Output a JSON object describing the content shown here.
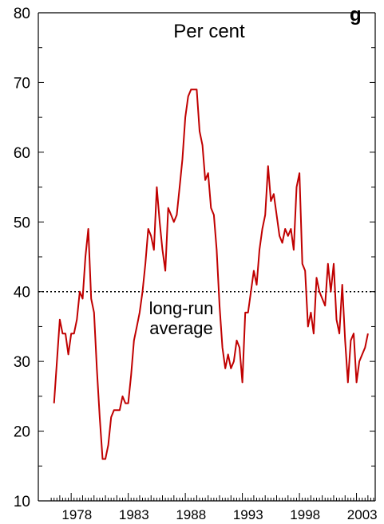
{
  "chart_data": {
    "type": "line",
    "title": "",
    "clipped_title_fragment": "g",
    "unit_label": "Per cent",
    "annotation": [
      "long-run",
      "average"
    ],
    "xlabel": "",
    "ylabel": "",
    "xlim": [
      1976.1,
      2004.5
    ],
    "ylim": [
      10,
      80
    ],
    "y_ticks": [
      10,
      20,
      30,
      40,
      50,
      60,
      70,
      80
    ],
    "x_ticks": [
      1978,
      1983,
      1988,
      1993,
      1998,
      2003
    ],
    "x_tick_labels": [
      "1978",
      "1983",
      "1988",
      "1993",
      "1998",
      "2003"
    ],
    "y_tick_labels": [
      "10",
      "20",
      "30",
      "40",
      "50",
      "60",
      "70",
      "80"
    ],
    "reference_line": {
      "value": 40,
      "style": "dotted",
      "color": "#000000"
    },
    "grid": false,
    "series": [
      {
        "color": "#c00000",
        "x": [
          1976.5,
          1976.75,
          1977.0,
          1977.25,
          1977.5,
          1977.75,
          1978.0,
          1978.25,
          1978.5,
          1978.75,
          1979.0,
          1979.25,
          1979.5,
          1979.75,
          1980.0,
          1980.25,
          1980.5,
          1980.75,
          1981.0,
          1981.25,
          1981.5,
          1981.75,
          1982.0,
          1982.25,
          1982.5,
          1982.75,
          1983.0,
          1983.25,
          1983.5,
          1983.75,
          1984.0,
          1984.25,
          1984.5,
          1984.75,
          1985.0,
          1985.25,
          1985.5,
          1985.75,
          1986.0,
          1986.25,
          1986.5,
          1986.75,
          1987.0,
          1987.25,
          1987.5,
          1987.75,
          1988.0,
          1988.25,
          1988.5,
          1988.75,
          1989.0,
          1989.25,
          1989.5,
          1989.75,
          1990.0,
          1990.25,
          1990.5,
          1990.75,
          1991.0,
          1991.25,
          1991.5,
          1991.75,
          1992.0,
          1992.25,
          1992.5,
          1992.75,
          1993.0,
          1993.25,
          1993.5,
          1993.75,
          1994.0,
          1994.25,
          1994.5,
          1994.75,
          1995.0,
          1995.25,
          1995.5,
          1995.75,
          1996.0,
          1996.25,
          1996.5,
          1996.75,
          1997.0,
          1997.25,
          1997.5,
          1997.75,
          1998.0,
          1998.25,
          1998.5,
          1998.75,
          1999.0,
          1999.25,
          1999.5,
          1999.75,
          2000.0,
          2000.25,
          2000.5,
          2000.75,
          2001.0,
          2001.25,
          2001.5,
          2001.75,
          2002.0,
          2002.25,
          2002.5,
          2002.75,
          2003.0,
          2003.25,
          2003.5,
          2003.75,
          2004.0
        ],
        "values": [
          24,
          30,
          36,
          34,
          34,
          31,
          34,
          34,
          36,
          40,
          39,
          45,
          49,
          39,
          37,
          29,
          22,
          16,
          16,
          18,
          22,
          23,
          23,
          23,
          25,
          24,
          24,
          28,
          33,
          35,
          37,
          40,
          44,
          49,
          48,
          46,
          55,
          50,
          46,
          43,
          52,
          51,
          50,
          51,
          55,
          59,
          65,
          68,
          69,
          69,
          69,
          63,
          61,
          56,
          57,
          52,
          51,
          46,
          38,
          32,
          29,
          31,
          29,
          30,
          33,
          32,
          27,
          37,
          37,
          40,
          43,
          41,
          46,
          49,
          51,
          58,
          53,
          54,
          51,
          48,
          47,
          49,
          48,
          49,
          46,
          55,
          57,
          44,
          43,
          35,
          37,
          34,
          42,
          40,
          39,
          38,
          44,
          40,
          44,
          36,
          34,
          41,
          33,
          27,
          33,
          34,
          27,
          30,
          31,
          32,
          34
        ]
      }
    ]
  }
}
